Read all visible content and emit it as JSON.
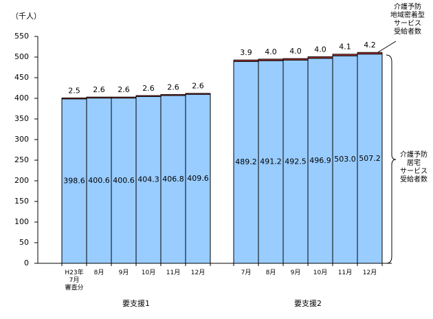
{
  "chart_data": {
    "type": "stacked-bar",
    "y_label": "（千人）",
    "groups": [
      {
        "label": "要支援1",
        "categories": [
          "H23年\n7月\n審査分",
          "8月",
          "9月",
          "10月",
          "11月",
          "12月"
        ]
      },
      {
        "label": "要支援2",
        "categories": [
          "7月",
          "8月",
          "9月",
          "10月",
          "11月",
          "12月"
        ]
      }
    ],
    "series": [
      {
        "name": "介護予防\n居宅\nサービス\n受給者数",
        "color": "#99ccff",
        "values": [
          398.6,
          400.6,
          400.6,
          404.3,
          406.8,
          409.6,
          489.2,
          491.2,
          492.5,
          496.9,
          503.0,
          507.2
        ],
        "value_labels": [
          "398.6",
          "400.6",
          "400.6",
          "404.3",
          "406.8",
          "409.6",
          "489.2",
          "491.2",
          "492.5",
          "496.9",
          "503.0",
          "507.2"
        ]
      },
      {
        "name": "介護予防\n地域密着型\nサービス\n受給者数",
        "color": "#993333",
        "values": [
          2.5,
          2.6,
          2.6,
          2.6,
          2.6,
          2.6,
          3.9,
          4.0,
          4.0,
          4.0,
          4.1,
          4.2
        ],
        "value_labels": [
          "2.5",
          "2.6",
          "2.6",
          "2.6",
          "2.6",
          "2.6",
          "3.9",
          "4.0",
          "4.0",
          "4.0",
          "4.1",
          "4.2"
        ]
      }
    ],
    "ylim": [
      0,
      550
    ],
    "yticks": [
      0,
      50,
      100,
      150,
      200,
      250,
      300,
      350,
      400,
      450,
      500,
      550
    ]
  }
}
